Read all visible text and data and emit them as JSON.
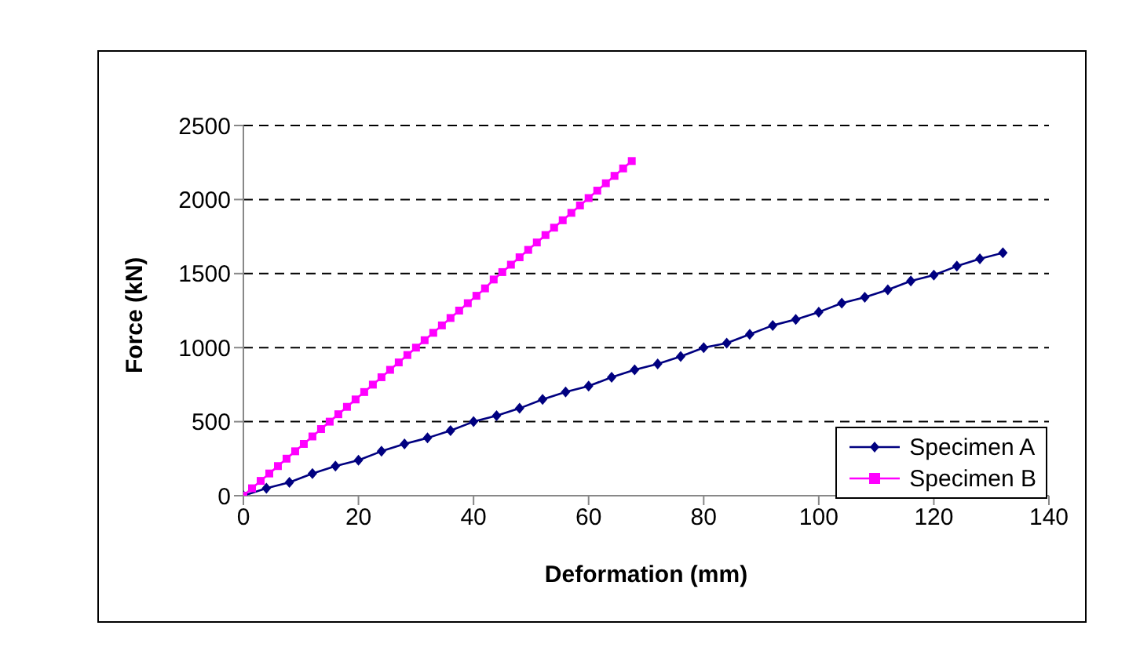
{
  "chart_data": {
    "type": "line",
    "xlabel": "Deformation (mm)",
    "ylabel": "Force (kN)",
    "xlim": [
      0,
      140
    ],
    "xticks": [
      0,
      20,
      40,
      60,
      80,
      100,
      120,
      140
    ],
    "ylim": [
      0,
      2500
    ],
    "yticks": [
      0,
      500,
      1000,
      1500,
      2000,
      2500
    ],
    "grid": "y",
    "legend": "bottom right",
    "series": [
      {
        "name": "Specimen A",
        "color": "#000080",
        "marker": "diamond",
        "x": [
          0,
          4,
          8,
          12,
          16,
          20,
          24,
          28,
          32,
          36,
          40,
          44,
          48,
          52,
          56,
          60,
          64,
          68,
          72,
          76,
          80,
          84,
          88,
          92,
          96,
          100,
          104,
          108,
          112,
          116,
          120,
          124,
          128,
          132
        ],
        "values": [
          0,
          50,
          90,
          150,
          200,
          240,
          300,
          350,
          390,
          440,
          500,
          540,
          590,
          650,
          700,
          740,
          800,
          850,
          890,
          940,
          1000,
          1030,
          1090,
          1150,
          1190,
          1240,
          1300,
          1340,
          1390,
          1450,
          1490,
          1550,
          1600,
          1640
        ]
      },
      {
        "name": "Specimen B",
        "color": "#ff00ff",
        "marker": "square",
        "x": [
          0,
          1.5,
          3,
          4.5,
          6,
          7.5,
          9,
          10.5,
          12,
          13.5,
          15,
          16.5,
          18,
          19.5,
          21,
          22.5,
          24,
          25.5,
          27,
          28.5,
          30,
          31.5,
          33,
          34.5,
          36,
          37.5,
          39,
          40.5,
          42,
          43.5,
          45,
          46.5,
          48,
          49.5,
          51,
          52.5,
          54,
          55.5,
          57,
          58.5,
          60,
          61.5,
          63,
          64.5,
          66,
          67.5
        ],
        "values": [
          0,
          50,
          100,
          150,
          200,
          250,
          300,
          350,
          400,
          450,
          500,
          550,
          600,
          650,
          700,
          750,
          800,
          850,
          900,
          950,
          1000,
          1050,
          1100,
          1150,
          1200,
          1250,
          1300,
          1350,
          1400,
          1460,
          1510,
          1560,
          1610,
          1660,
          1710,
          1760,
          1810,
          1860,
          1910,
          1960,
          2010,
          2060,
          2110,
          2160,
          2210,
          2260
        ]
      }
    ]
  }
}
